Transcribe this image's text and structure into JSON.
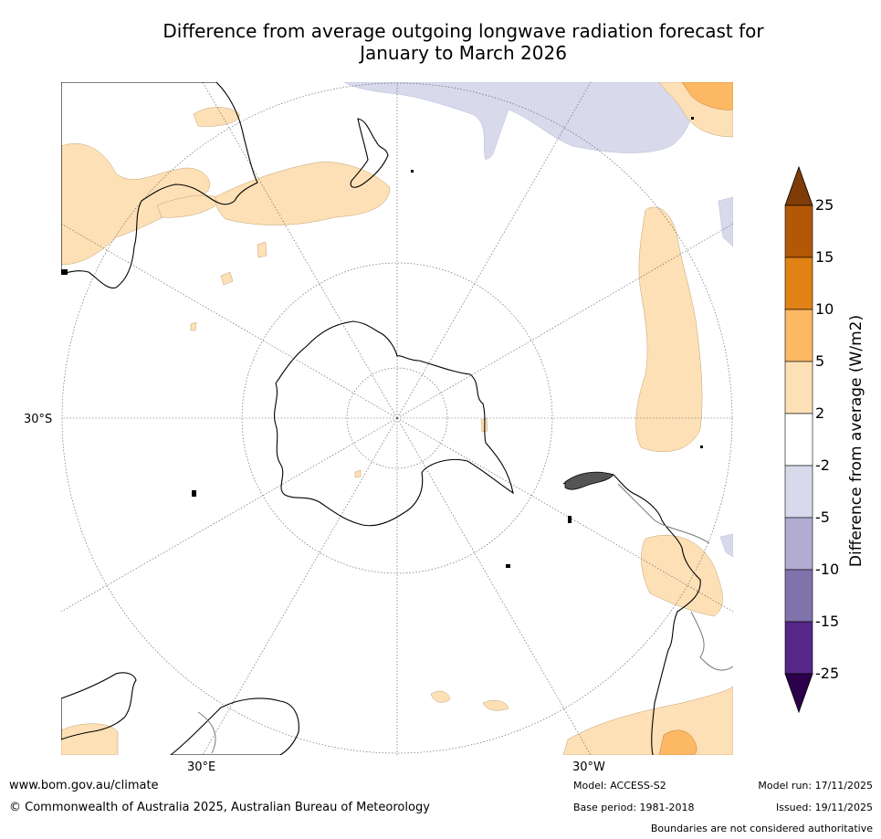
{
  "title_line1": "Difference from average outgoing longwave radiation forecast for",
  "title_line2": "January to March 2026",
  "map": {
    "projection": "south-polar-stereographic",
    "lat_label": "30°S",
    "lon_label_left": "30°E",
    "lon_label_right": "30°W"
  },
  "colorbar": {
    "title": "Difference from average (W/m2)",
    "ticks": [
      "25",
      "15",
      "10",
      "5",
      "2",
      "-2",
      "-5",
      "-10",
      "-15",
      "-25"
    ],
    "bins": [
      {
        "range": ">25",
        "color": "#7f3b08"
      },
      {
        "range": "15 to 25",
        "color": "#b35806"
      },
      {
        "range": "10 to 15",
        "color": "#e08214"
      },
      {
        "range": "5 to 10",
        "color": "#fdb863"
      },
      {
        "range": "2 to 5",
        "color": "#fee0b6"
      },
      {
        "range": "-2 to 2",
        "color": "#ffffff"
      },
      {
        "range": "-5 to -2",
        "color": "#d8daeb"
      },
      {
        "range": "-10 to -5",
        "color": "#b2abd2"
      },
      {
        "range": "-15 to -10",
        "color": "#8073ac"
      },
      {
        "range": "-25 to -15",
        "color": "#542788"
      },
      {
        "range": "<-25",
        "color": "#2d004b"
      }
    ]
  },
  "footer": {
    "website": "www.bom.gov.au/climate",
    "copyright": "© Commonwealth of Australia 2025, Australian Bureau of Meteorology",
    "model": "Model: ACCESS-S2",
    "base_period": "Base period: 1981-2018",
    "model_run": "Model run: 17/11/2025",
    "issued": "Issued: 19/11/2025",
    "disclaimer": "Boundaries are not considered authoritative"
  }
}
